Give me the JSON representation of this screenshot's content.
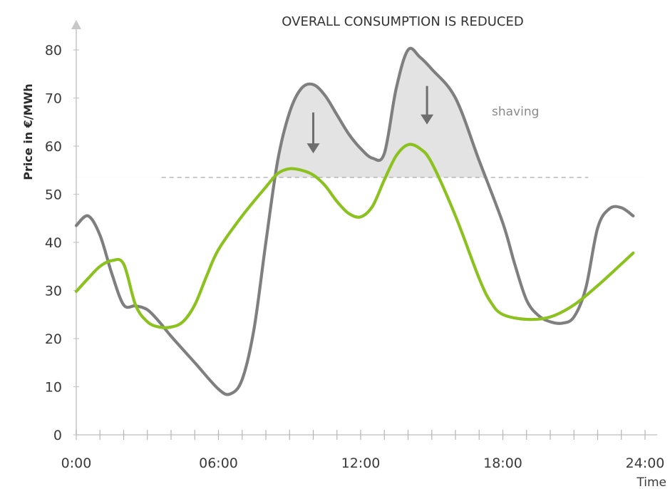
{
  "chart_data": {
    "type": "line",
    "title": "OVERALL CONSUMPTION IS REDUCED",
    "xlabel": "Time",
    "ylabel": "Price in €/MWh",
    "x_tick_labels": [
      "0:00",
      "06:00",
      "12:00",
      "18:00",
      "24:00"
    ],
    "x_ticks": [
      0,
      6,
      12,
      18,
      24
    ],
    "y_ticks": [
      0,
      10,
      20,
      30,
      40,
      50,
      60,
      70,
      80
    ],
    "xlim": [
      0,
      24
    ],
    "ylim": [
      0,
      80
    ],
    "grid": false,
    "threshold": 53.5,
    "annotation": "shaving",
    "series": [
      {
        "color": "#7f7f7f",
        "points": [
          [
            0.0,
            43.5
          ],
          [
            0.5,
            45.5
          ],
          [
            1.0,
            41.5
          ],
          [
            1.5,
            33.5
          ],
          [
            2.0,
            27.0
          ],
          [
            2.5,
            26.8
          ],
          [
            3.0,
            26.0
          ],
          [
            3.5,
            23.5
          ],
          [
            4.0,
            20.5
          ],
          [
            5.0,
            15.0
          ],
          [
            6.0,
            9.5
          ],
          [
            6.5,
            8.5
          ],
          [
            7.0,
            11.5
          ],
          [
            7.5,
            22.0
          ],
          [
            8.0,
            40.0
          ],
          [
            8.5,
            57.0
          ],
          [
            9.0,
            67.0
          ],
          [
            9.5,
            72.0
          ],
          [
            10.0,
            72.8
          ],
          [
            10.5,
            70.5
          ],
          [
            11.0,
            66.5
          ],
          [
            11.5,
            62.5
          ],
          [
            12.0,
            59.5
          ],
          [
            12.5,
            57.5
          ],
          [
            13.0,
            58.5
          ],
          [
            13.5,
            72.0
          ],
          [
            14.0,
            80.0
          ],
          [
            14.5,
            78.5
          ],
          [
            15.0,
            76.0
          ],
          [
            16.0,
            70.0
          ],
          [
            17.0,
            57.0
          ],
          [
            18.0,
            44.0
          ],
          [
            18.5,
            35.5
          ],
          [
            19.0,
            28.0
          ],
          [
            19.5,
            24.8
          ],
          [
            20.0,
            23.5
          ],
          [
            20.5,
            23.2
          ],
          [
            21.0,
            24.5
          ],
          [
            21.5,
            30.5
          ],
          [
            22.0,
            43.0
          ],
          [
            22.5,
            47.0
          ],
          [
            23.0,
            47.2
          ],
          [
            23.5,
            45.5
          ]
        ]
      },
      {
        "color": "#8cc21f",
        "points": [
          [
            0.0,
            29.8
          ],
          [
            0.5,
            32.5
          ],
          [
            1.0,
            35.0
          ],
          [
            1.5,
            36.2
          ],
          [
            2.0,
            35.5
          ],
          [
            2.5,
            27.0
          ],
          [
            3.0,
            23.5
          ],
          [
            3.5,
            22.4
          ],
          [
            4.0,
            22.4
          ],
          [
            4.5,
            23.5
          ],
          [
            5.0,
            27.0
          ],
          [
            5.5,
            33.0
          ],
          [
            6.0,
            38.5
          ],
          [
            7.0,
            45.5
          ],
          [
            8.0,
            51.5
          ],
          [
            8.5,
            54.3
          ],
          [
            9.0,
            55.3
          ],
          [
            9.5,
            55.0
          ],
          [
            10.0,
            54.0
          ],
          [
            10.5,
            51.8
          ],
          [
            11.0,
            48.5
          ],
          [
            11.5,
            46.0
          ],
          [
            12.0,
            45.3
          ],
          [
            12.5,
            47.5
          ],
          [
            13.0,
            53.0
          ],
          [
            13.5,
            58.0
          ],
          [
            14.0,
            60.3
          ],
          [
            14.5,
            59.5
          ],
          [
            15.0,
            56.5
          ],
          [
            16.0,
            45.5
          ],
          [
            17.0,
            32.5
          ],
          [
            17.5,
            27.5
          ],
          [
            18.0,
            25.0
          ],
          [
            19.0,
            24.0
          ],
          [
            20.0,
            24.5
          ],
          [
            21.0,
            27.0
          ],
          [
            22.0,
            31.0
          ],
          [
            23.0,
            35.5
          ],
          [
            23.5,
            37.8
          ]
        ]
      }
    ],
    "shaving_arrows": [
      {
        "x": 10.0,
        "y_from": 67.0,
        "y_to": 58.5
      },
      {
        "x": 14.8,
        "y_from": 72.5,
        "y_to": 64.5
      }
    ]
  }
}
